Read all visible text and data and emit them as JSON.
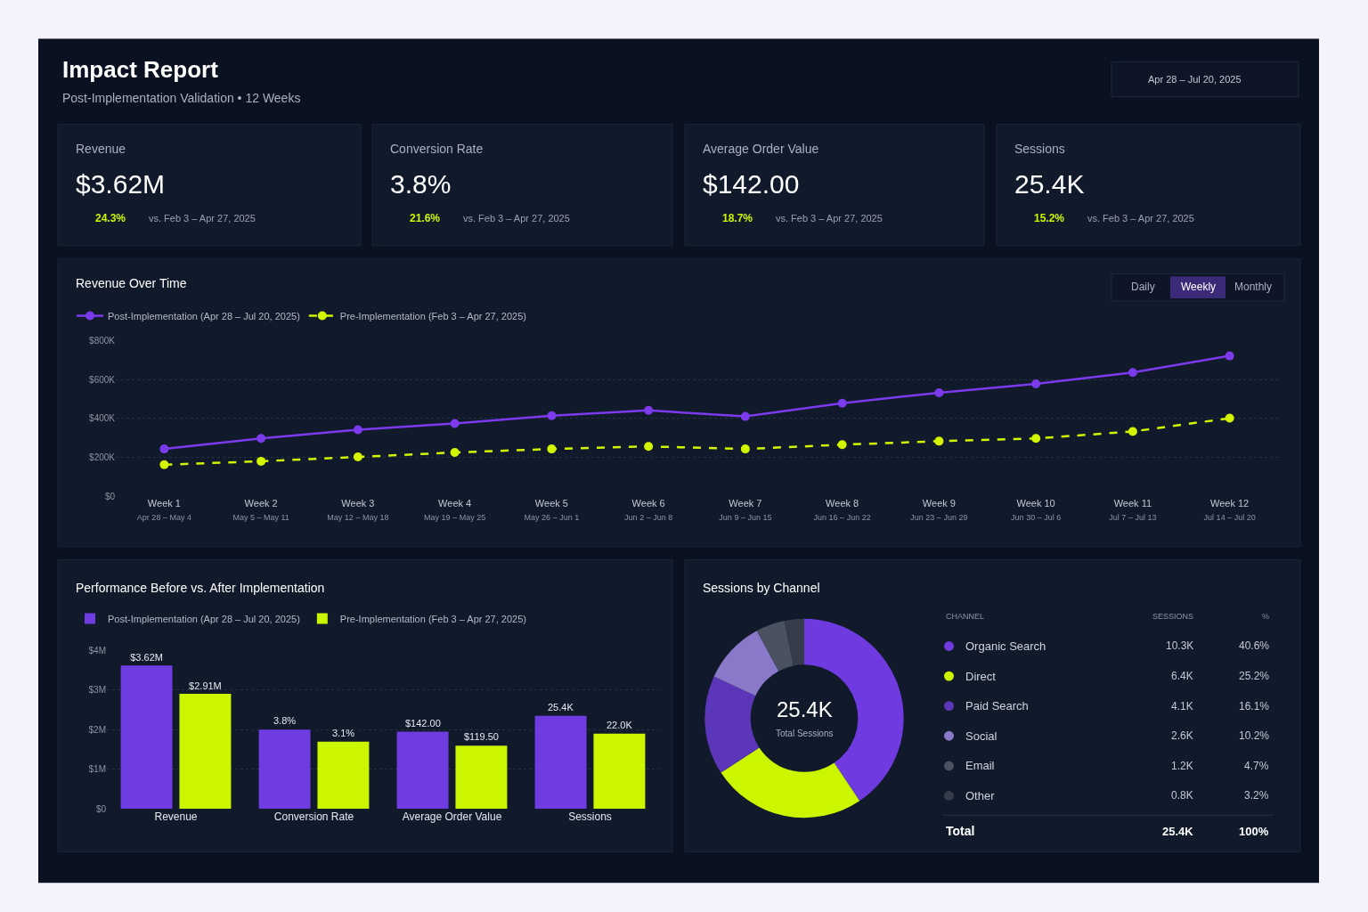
{
  "chart_data": [
    {
      "type": "other",
      "title": "Impact Report",
      "subtitle": "Post-Implementation Validation • 12 Weeks",
      "categories": [
        "Revenue",
        "Conversion Rate",
        "Average Order Value",
        "Sessions"
      ],
      "annotations": [
        "Apr 28 – Jul 20, 2025",
        "$3.62M",
        "24.3%",
        "vs. Feb 3 – Apr 27, 2025",
        "3.8%",
        "21.6%",
        "vs. Feb 3 – Apr 27, 2025",
        "$142.00",
        "18.7%",
        "vs. Feb 3 – Apr 27, 2025",
        "25.4K",
        "15.2%",
        "vs. Feb 3 – Apr 27, 2025"
      ]
    },
    {
      "type": "line",
      "title": "Revenue Over Time",
      "categories": [
        "Week 1\nApr 28 – May 4",
        "Week 2\nMay 5 – May 11",
        "Week 3\nMay 12 – May 18",
        "Week 4\nMay 19 – May 25",
        "Week 5\nMay 26 – Jun 1",
        "Week 6\nJun 2 – Jun 8",
        "Week 7\nJun 9 – Jun 15",
        "Week 8\nJun 16 – Jun 22",
        "Week 9\nJun 23 – Jun 29",
        "Week 10\nJun 30 – Jul 6",
        "Week 11\nJul 7 – Jul 13",
        "Week 12\nJul 14 – Jul 20"
      ],
      "series": [
        {
          "name": "Post-Implementation (Apr 28 – Jul 20, 2025)",
          "color": "#7c3aed",
          "line_style": "solid",
          "values": [
            244000,
            298000,
            343000,
            375000,
            415000,
            442000,
            411000,
            479000,
            533000,
            578000,
            637000,
            722000
          ]
        },
        {
          "name": "Pre-Implementation (Feb 3 – Apr 27, 2025)",
          "color": "#d4f500",
          "line_style": "dashed",
          "values": [
            163000,
            181000,
            203000,
            226000,
            244000,
            257000,
            244000,
            266000,
            284000,
            298000,
            334000,
            402000
          ]
        }
      ],
      "ylim": [
        0,
        800000
      ],
      "yticks": [
        {
          "value": 0,
          "label": "$0"
        },
        {
          "value": 200000,
          "label": "$200K"
        },
        {
          "value": 400000,
          "label": "$400K"
        },
        {
          "value": 600000,
          "label": "$600K"
        },
        {
          "value": 800000,
          "label": "$800K"
        }
      ],
      "grid": "y",
      "legend": "top left",
      "marker": "circle",
      "annotations": [
        "Daily",
        "Weekly",
        "Monthly"
      ]
    },
    {
      "type": "bar",
      "title": "Performance Before vs. After Implementation",
      "categories": [
        "Revenue",
        "Conversion Rate",
        "Average Order Value",
        "Sessions"
      ],
      "series": [
        {
          "name": "Post-Implementation (Apr 28 – Jul 20, 2025)",
          "color": "#6e3ce0",
          "values": [
            3.62,
            2.0,
            1.95,
            2.35
          ],
          "value_labels": [
            "$3.62M",
            null,
            null,
            null
          ]
        },
        {
          "name": "Pre-Implementation (Feb 3 – Apr 27, 2025)",
          "color": "#ccf500",
          "values": [
            2.91,
            1.7,
            1.6,
            1.9
          ],
          "value_labels": [
            "$2.91M",
            null,
            null,
            null
          ]
        }
      ],
      "annotations": [
        {
          "text": "3.8%",
          "x": "Conversion Rate",
          "y": 2.0
        },
        {
          "text": "3.1%",
          "x": "Conversion Rate",
          "y": 1.7
        },
        {
          "text": "$142.00",
          "x": "Average Order Value",
          "y": 1.95
        },
        {
          "text": "$119.50",
          "x": "Average Order Value",
          "y": 1.6
        },
        {
          "text": "25.4K",
          "x": "Sessions",
          "y": 2.35
        },
        {
          "text": "22.0K",
          "x": "Sessions",
          "y": 1.9
        }
      ],
      "ylim": [
        0,
        4
      ],
      "yticks": [
        {
          "value": 0,
          "label": "$0"
        },
        {
          "value": 1,
          "label": "$1M"
        },
        {
          "value": 2,
          "label": "$2M"
        },
        {
          "value": 3,
          "label": "$3M"
        },
        {
          "value": 4,
          "label": "$4M"
        }
      ],
      "grid": "y",
      "legend": "top left"
    },
    {
      "type": "donut",
      "title": "Sessions by Channel",
      "categories": [
        "Organic Search",
        "Direct",
        "Paid Search",
        "Social",
        "Email",
        "Other"
      ],
      "values": [
        40.6,
        25.2,
        16.1,
        10.2,
        4.7,
        3.2
      ],
      "colors": [
        "#6f3be0",
        "#ccf500",
        "#5b36b8",
        "#8a78c8",
        "#4a5262",
        "#353c4a"
      ],
      "value_labels": [
        "40.6%",
        "25.2%",
        "16.1%",
        "10.2%",
        "4.7%",
        "3.2%"
      ],
      "legend": "right",
      "annotations": [
        "25.4K",
        "Total Sessions",
        "CHANNEL",
        "SESSIONS",
        "%",
        "10.3K",
        "6.4K",
        "4.1K",
        "2.6K",
        "1.2K",
        "0.8K",
        "Total",
        "25.4K",
        "100%"
      ]
    }
  ]
}
